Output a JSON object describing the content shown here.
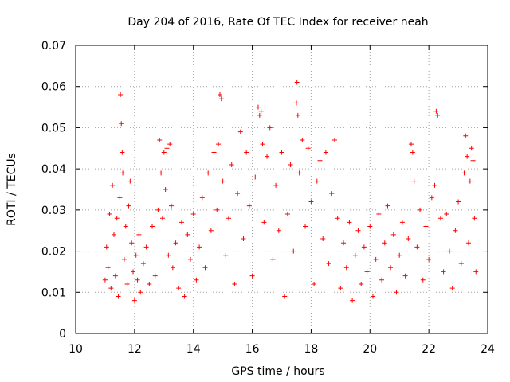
{
  "chart_data": {
    "type": "scatter",
    "title": "Day 204 of 2016, Rate Of TEC Index for receiver neah",
    "xlabel": "GPS time / hours",
    "ylabel": "ROTI / TECUs",
    "xlim": [
      10,
      24
    ],
    "ylim": [
      0,
      0.07
    ],
    "xticks": [
      10,
      12,
      14,
      16,
      18,
      20,
      22,
      24
    ],
    "xtick_labels": [
      "10",
      "12",
      "14",
      "16",
      "18",
      "20",
      "22",
      "24"
    ],
    "yticks": [
      0,
      0.01,
      0.02,
      0.03,
      0.04,
      0.05,
      0.06,
      0.07
    ],
    "ytick_labels": [
      "0",
      "0.01",
      "0.02",
      "0.03",
      "0.04",
      "0.05",
      "0.06",
      "0.07"
    ],
    "grid": true,
    "marker": "+",
    "color": "#ff0000",
    "data_range": {
      "x_start": 11.0,
      "x_end": 23.6
    },
    "series": [
      {
        "name": "ROTI",
        "points": [
          [
            11.0,
            0.013
          ],
          [
            11.05,
            0.021
          ],
          [
            11.1,
            0.016
          ],
          [
            11.15,
            0.029
          ],
          [
            11.2,
            0.011
          ],
          [
            11.25,
            0.036
          ],
          [
            11.3,
            0.024
          ],
          [
            11.35,
            0.014
          ],
          [
            11.4,
            0.028
          ],
          [
            11.45,
            0.009
          ],
          [
            11.5,
            0.033
          ],
          [
            11.52,
            0.058
          ],
          [
            11.55,
            0.051
          ],
          [
            11.58,
            0.044
          ],
          [
            11.6,
            0.039
          ],
          [
            11.65,
            0.018
          ],
          [
            11.7,
            0.026
          ],
          [
            11.75,
            0.012
          ],
          [
            11.8,
            0.031
          ],
          [
            11.85,
            0.037
          ],
          [
            11.9,
            0.022
          ],
          [
            11.95,
            0.015
          ],
          [
            12.0,
            0.008
          ],
          [
            12.05,
            0.019
          ],
          [
            12.1,
            0.013
          ],
          [
            12.15,
            0.024
          ],
          [
            12.2,
            0.01
          ],
          [
            12.3,
            0.017
          ],
          [
            12.4,
            0.021
          ],
          [
            12.5,
            0.012
          ],
          [
            12.6,
            0.026
          ],
          [
            12.7,
            0.014
          ],
          [
            12.8,
            0.03
          ],
          [
            12.85,
            0.047
          ],
          [
            12.9,
            0.039
          ],
          [
            12.95,
            0.028
          ],
          [
            13.0,
            0.044
          ],
          [
            13.05,
            0.035
          ],
          [
            13.1,
            0.045
          ],
          [
            13.15,
            0.019
          ],
          [
            13.2,
            0.046
          ],
          [
            13.25,
            0.031
          ],
          [
            13.3,
            0.016
          ],
          [
            13.4,
            0.022
          ],
          [
            13.5,
            0.011
          ],
          [
            13.6,
            0.027
          ],
          [
            13.7,
            0.009
          ],
          [
            13.8,
            0.024
          ],
          [
            13.9,
            0.018
          ],
          [
            14.0,
            0.029
          ],
          [
            14.1,
            0.013
          ],
          [
            14.2,
            0.021
          ],
          [
            14.3,
            0.033
          ],
          [
            14.4,
            0.016
          ],
          [
            14.5,
            0.039
          ],
          [
            14.6,
            0.025
          ],
          [
            14.7,
            0.044
          ],
          [
            14.8,
            0.03
          ],
          [
            14.85,
            0.046
          ],
          [
            14.9,
            0.058
          ],
          [
            14.95,
            0.057
          ],
          [
            15.0,
            0.037
          ],
          [
            15.1,
            0.019
          ],
          [
            15.2,
            0.028
          ],
          [
            15.3,
            0.041
          ],
          [
            15.4,
            0.012
          ],
          [
            15.5,
            0.034
          ],
          [
            15.6,
            0.049
          ],
          [
            15.7,
            0.023
          ],
          [
            15.8,
            0.044
          ],
          [
            15.9,
            0.031
          ],
          [
            16.0,
            0.014
          ],
          [
            16.1,
            0.038
          ],
          [
            16.2,
            0.055
          ],
          [
            16.25,
            0.053
          ],
          [
            16.3,
            0.054
          ],
          [
            16.35,
            0.046
          ],
          [
            16.4,
            0.027
          ],
          [
            16.5,
            0.043
          ],
          [
            16.6,
            0.05
          ],
          [
            16.7,
            0.018
          ],
          [
            16.8,
            0.036
          ],
          [
            16.9,
            0.025
          ],
          [
            17.0,
            0.044
          ],
          [
            17.1,
            0.009
          ],
          [
            17.2,
            0.029
          ],
          [
            17.3,
            0.041
          ],
          [
            17.4,
            0.02
          ],
          [
            17.5,
            0.056
          ],
          [
            17.52,
            0.061
          ],
          [
            17.55,
            0.053
          ],
          [
            17.6,
            0.039
          ],
          [
            17.7,
            0.047
          ],
          [
            17.8,
            0.026
          ],
          [
            17.9,
            0.045
          ],
          [
            18.0,
            0.032
          ],
          [
            18.1,
            0.012
          ],
          [
            18.2,
            0.037
          ],
          [
            18.3,
            0.042
          ],
          [
            18.4,
            0.023
          ],
          [
            18.5,
            0.044
          ],
          [
            18.6,
            0.017
          ],
          [
            18.7,
            0.034
          ],
          [
            18.8,
            0.047
          ],
          [
            18.9,
            0.028
          ],
          [
            19.0,
            0.011
          ],
          [
            19.1,
            0.022
          ],
          [
            19.2,
            0.016
          ],
          [
            19.3,
            0.027
          ],
          [
            19.4,
            0.008
          ],
          [
            19.5,
            0.019
          ],
          [
            19.6,
            0.025
          ],
          [
            19.7,
            0.012
          ],
          [
            19.8,
            0.021
          ],
          [
            19.9,
            0.015
          ],
          [
            20.0,
            0.026
          ],
          [
            20.1,
            0.009
          ],
          [
            20.2,
            0.018
          ],
          [
            20.3,
            0.029
          ],
          [
            20.4,
            0.013
          ],
          [
            20.5,
            0.022
          ],
          [
            20.6,
            0.031
          ],
          [
            20.7,
            0.016
          ],
          [
            20.8,
            0.024
          ],
          [
            20.9,
            0.01
          ],
          [
            21.0,
            0.019
          ],
          [
            21.1,
            0.027
          ],
          [
            21.2,
            0.014
          ],
          [
            21.3,
            0.023
          ],
          [
            21.4,
            0.046
          ],
          [
            21.45,
            0.044
          ],
          [
            21.5,
            0.037
          ],
          [
            21.6,
            0.021
          ],
          [
            21.7,
            0.03
          ],
          [
            21.8,
            0.013
          ],
          [
            21.9,
            0.026
          ],
          [
            22.0,
            0.018
          ],
          [
            22.1,
            0.033
          ],
          [
            22.2,
            0.036
          ],
          [
            22.25,
            0.054
          ],
          [
            22.3,
            0.053
          ],
          [
            22.4,
            0.028
          ],
          [
            22.5,
            0.015
          ],
          [
            22.6,
            0.029
          ],
          [
            22.7,
            0.02
          ],
          [
            22.8,
            0.011
          ],
          [
            22.9,
            0.025
          ],
          [
            23.0,
            0.032
          ],
          [
            23.1,
            0.017
          ],
          [
            23.2,
            0.039
          ],
          [
            23.25,
            0.048
          ],
          [
            23.3,
            0.043
          ],
          [
            23.35,
            0.022
          ],
          [
            23.4,
            0.037
          ],
          [
            23.45,
            0.045
          ],
          [
            23.5,
            0.042
          ],
          [
            23.55,
            0.028
          ],
          [
            23.6,
            0.015
          ]
        ]
      }
    ]
  }
}
